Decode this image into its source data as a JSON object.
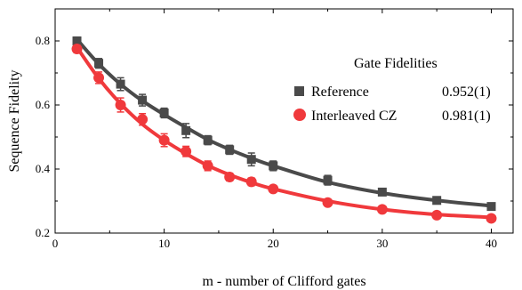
{
  "chart_data": {
    "type": "line",
    "title": "",
    "xlabel": "m - number of Clifford gates",
    "ylabel": "Sequence Fidelity",
    "xlim": [
      0,
      42
    ],
    "ylim": [
      0.2,
      0.9
    ],
    "xticks": [
      0,
      10,
      20,
      30,
      40
    ],
    "xtick_labels": [
      "0",
      "10",
      "20",
      "30",
      "40"
    ],
    "yticks": [
      0.2,
      0.4,
      0.6,
      0.8
    ],
    "ytick_labels": [
      "0.2",
      "0.4",
      "0.6",
      "0.8"
    ],
    "grid": false,
    "legend": {
      "title": "Gate Fidelities",
      "placement": "top-right"
    },
    "series": [
      {
        "name": "Reference",
        "fidelity": "0.952(1)",
        "marker": "square",
        "color": "#4a4a4a",
        "x": [
          2,
          4,
          6,
          8,
          10,
          12,
          14,
          16,
          18,
          20,
          25,
          30,
          35,
          40
        ],
        "y": [
          0.8,
          0.73,
          0.665,
          0.615,
          0.575,
          0.52,
          0.49,
          0.46,
          0.43,
          0.41,
          0.365,
          0.328,
          0.302,
          0.283
        ],
        "err": [
          0.012,
          0.015,
          0.02,
          0.018,
          0.015,
          0.022,
          0.014,
          0.014,
          0.02,
          0.015,
          0.015,
          0.01,
          0.01,
          0.01
        ],
        "fit_x": [
          2,
          4,
          6,
          8,
          10,
          12,
          14,
          16,
          18,
          20,
          25,
          30,
          35,
          40
        ],
        "fit_y": [
          0.805,
          0.728,
          0.665,
          0.613,
          0.57,
          0.53,
          0.492,
          0.461,
          0.434,
          0.41,
          0.359,
          0.325,
          0.302,
          0.285
        ]
      },
      {
        "name": "Interleaved CZ",
        "fidelity": "0.981(1)",
        "marker": "circle",
        "color": "#f0393c",
        "x": [
          2,
          4,
          6,
          8,
          10,
          12,
          14,
          16,
          18,
          20,
          25,
          30,
          35,
          40
        ],
        "y": [
          0.775,
          0.685,
          0.6,
          0.555,
          0.49,
          0.455,
          0.41,
          0.375,
          0.36,
          0.338,
          0.295,
          0.274,
          0.256,
          0.246
        ],
        "err": [
          0.012,
          0.018,
          0.022,
          0.018,
          0.02,
          0.016,
          0.015,
          0.012,
          0.012,
          0.01,
          0.01,
          0.01,
          0.008,
          0.008
        ],
        "fit_x": [
          2,
          4,
          6,
          8,
          10,
          12,
          14,
          16,
          18,
          20,
          25,
          30,
          35,
          40
        ],
        "fit_y": [
          0.78,
          0.683,
          0.604,
          0.54,
          0.49,
          0.448,
          0.411,
          0.382,
          0.358,
          0.338,
          0.3,
          0.274,
          0.258,
          0.249
        ]
      }
    ]
  }
}
